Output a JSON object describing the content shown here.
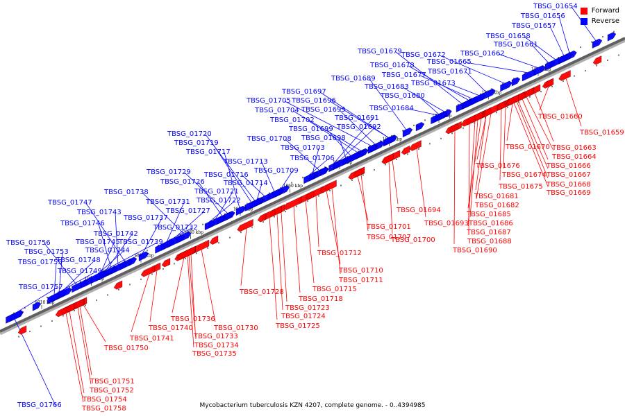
{
  "caption": "Mycobacterium tuberculosis KZN 4207, complete genome. - 0..4394985",
  "legend": [
    {
      "label": "Forward",
      "color": "#ff0000"
    },
    {
      "label": "Reverse",
      "color": "#0000ff"
    }
  ],
  "colors": {
    "forward": "#ff0000",
    "reverse": "#0000ff",
    "axis": "#606060"
  },
  "scale": {
    "unit": "kbp",
    "ticks": [
      "1810 kbp",
      "1820 kbp",
      "1830 kbp",
      "1840 kbp",
      "1850 kbp",
      "1860 kbp",
      "1870 kbp",
      "1880 kbp",
      "1890 kbp",
      "1900 kbp",
      "1910 kbp"
    ]
  },
  "reverse_genes": [
    "TBSG_01654",
    "TBSG_01656",
    "TBSG_01657",
    "TBSG_01658",
    "TBSG_01661",
    "TBSG_01662",
    "TBSG_01665",
    "TBSG_01671",
    "TBSG_01673",
    "TBSG_01672",
    "TBSG_01679",
    "TBSG_01678",
    "TBSG_01677",
    "TBSG_01683",
    "TBSG_01680",
    "TBSG_01684",
    "TBSG_01689",
    "TBSG_01697",
    "TBSG_01696",
    "TBSG_01695",
    "TBSG_01705",
    "TBSG_01704",
    "TBSG_01702",
    "TBSG_01699",
    "TBSG_01698",
    "TBSG_01691",
    "TBSG_01692",
    "TBSG_01708",
    "TBSG_01703",
    "TBSG_01706",
    "TBSG_01709",
    "TBSG_01713",
    "TBSG_01716",
    "TBSG_01714",
    "TBSG_01720",
    "TBSG_01719",
    "TBSG_01717",
    "TBSG_01729",
    "TBSG_01726",
    "TBSG_01721",
    "TBSG_01722",
    "TBSG_01738",
    "TBSG_01731",
    "TBSG_01727",
    "TBSG_01737",
    "TBSG_01732",
    "TBSG_01747",
    "TBSG_01743",
    "TBSG_01746",
    "TBSG_01742",
    "TBSG_01745",
    "TBSG_01744",
    "TBSG_01739",
    "TBSG_01756",
    "TBSG_01753",
    "TBSG_01748",
    "TBSG_01755",
    "TBSG_01749",
    "TBSG_01757",
    "TBSG_01766"
  ],
  "forward_genes": [
    "TBSG_01660",
    "TBSG_01659",
    "TBSG_01663",
    "TBSG_01670",
    "TBSG_01664",
    "TBSG_01666",
    "TBSG_01676",
    "TBSG_01667",
    "TBSG_01674",
    "TBSG_01668",
    "TBSG_01675",
    "TBSG_01669",
    "TBSG_01681",
    "TBSG_01682",
    "TBSG_01694",
    "TBSG_01685",
    "TBSG_01693",
    "TBSG_01686",
    "TBSG_01701",
    "TBSG_01687",
    "TBSG_01707",
    "TBSG_01700",
    "TBSG_01688",
    "TBSG_01690",
    "TBSG_01712",
    "TBSG_01710",
    "TBSG_01711",
    "TBSG_01715",
    "TBSG_01728",
    "TBSG_01718",
    "TBSG_01723",
    "TBSG_01724",
    "TBSG_01725",
    "TBSG_01736",
    "TBSG_01730",
    "TBSG_01740",
    "TBSG_01733",
    "TBSG_01741",
    "TBSG_01734",
    "TBSG_01735",
    "TBSG_01750",
    "TBSG_01751",
    "TBSG_01752",
    "TBSG_01754",
    "TBSG_01758"
  ]
}
